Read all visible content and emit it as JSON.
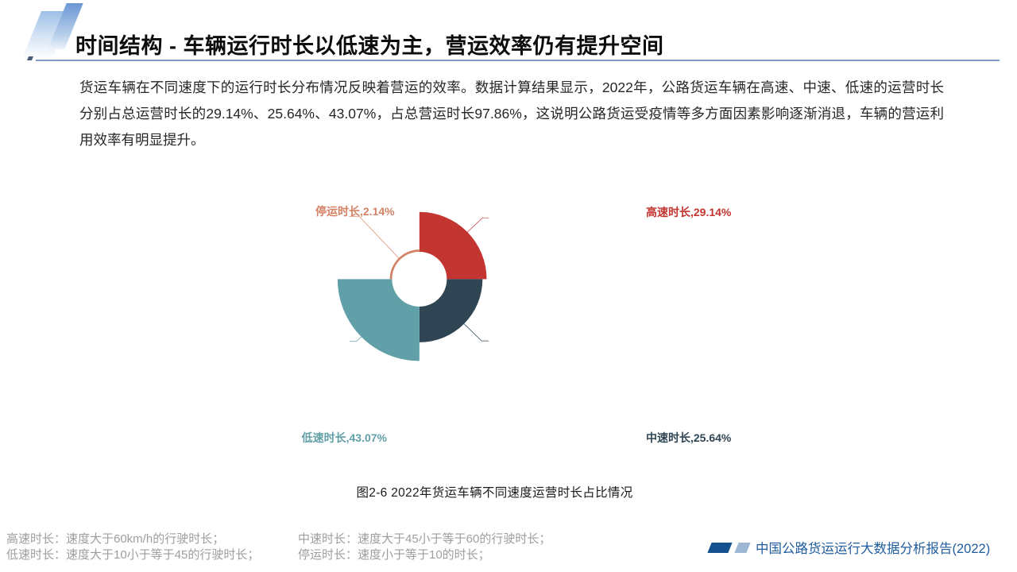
{
  "slide": {
    "title": "时间结构 - 车辆运行时长以低速为主，营运效率仍有提升空间",
    "body": "货运车辆在不同速度下的运行时长分布情况反映着营运的效率。数据计算结果显示，2022年，公路货运车辆在高速、中速、低速的运营时长分别占总运营时长的29.14%、25.64%、43.07%，占总营运时长97.86%，这说明公路货运受疫情等多方面因素影响逐渐消退，车辆的营运利用效率有明显提升。"
  },
  "chart_data": {
    "type": "pie",
    "variant": "rose-equal-angle-donut",
    "title": "图2-6 2022年货运车辆不同速度运营时长占比情况",
    "unit": "%",
    "start_angle": "top, clockwise, 90 degrees per segment, radius encodes value",
    "legend_position": "callout-labels",
    "segments": [
      {
        "label": "高速时长",
        "value": 29.14,
        "display": "高速时长,29.14%",
        "color": "#c23531"
      },
      {
        "label": "中速时长",
        "value": 25.64,
        "display": "中速时长,25.64%",
        "color": "#2f4554"
      },
      {
        "label": "低速时长",
        "value": 43.07,
        "display": "低速时长,43.07%",
        "color": "#61a0a8"
      },
      {
        "label": "停运时长",
        "value": 2.14,
        "display": "停运时长,2.14%",
        "color": "#d48265"
      }
    ]
  },
  "footnotes": {
    "col1": [
      "高速时长：速度大于60km/h的行驶时长；",
      "低速时长：速度大于10小于等于45的行驶时长；"
    ],
    "col2": [
      "中速时长：速度大于45小于等于60的行驶时长；",
      "停运时长：速度小于等于10的时长；"
    ]
  },
  "footer": {
    "report_label": "中国公路货运运行大数据分析报告(2022)"
  },
  "colors": {
    "title_underline": "#7e9cc0",
    "footer_blue": "#1f5c9e",
    "footnote_gray": "#9e9e9e",
    "deco_blue": "#6a97d4"
  }
}
